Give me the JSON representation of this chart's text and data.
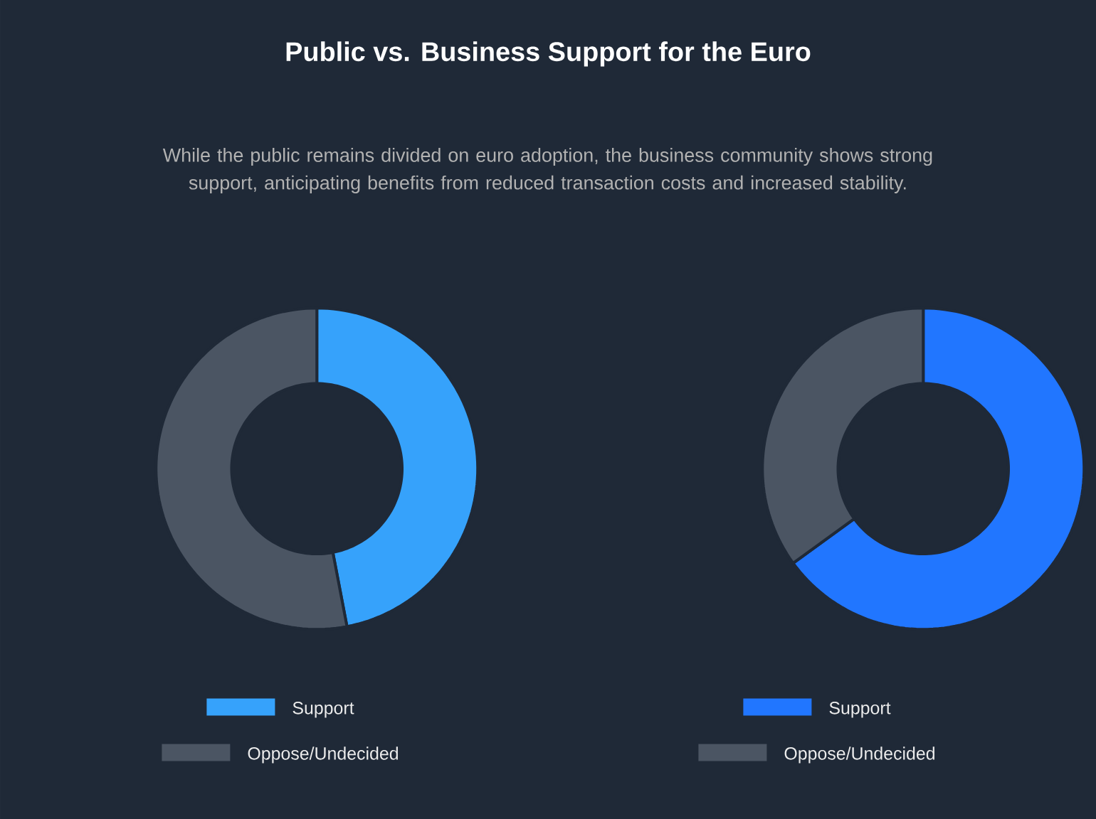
{
  "chart_data": [
    {
      "type": "donut",
      "title": "Public vs. Business Support for the Euro",
      "subtitle": "While the public remains divided on euro adoption, the business community shows strong support, anticipating benefits from reduced transaction costs and increased stability.",
      "categories": [
        "Support",
        "Oppose/Undecided"
      ],
      "values": [
        47,
        53
      ],
      "colors": [
        "#36a2fb",
        "#4b5563"
      ],
      "legend": "bottom"
    },
    {
      "type": "donut",
      "categories": [
        "Support",
        "Oppose/Undecided"
      ],
      "values": [
        65,
        35
      ],
      "colors": [
        "#2176ff",
        "#4b5563"
      ],
      "legend": "bottom"
    }
  ]
}
